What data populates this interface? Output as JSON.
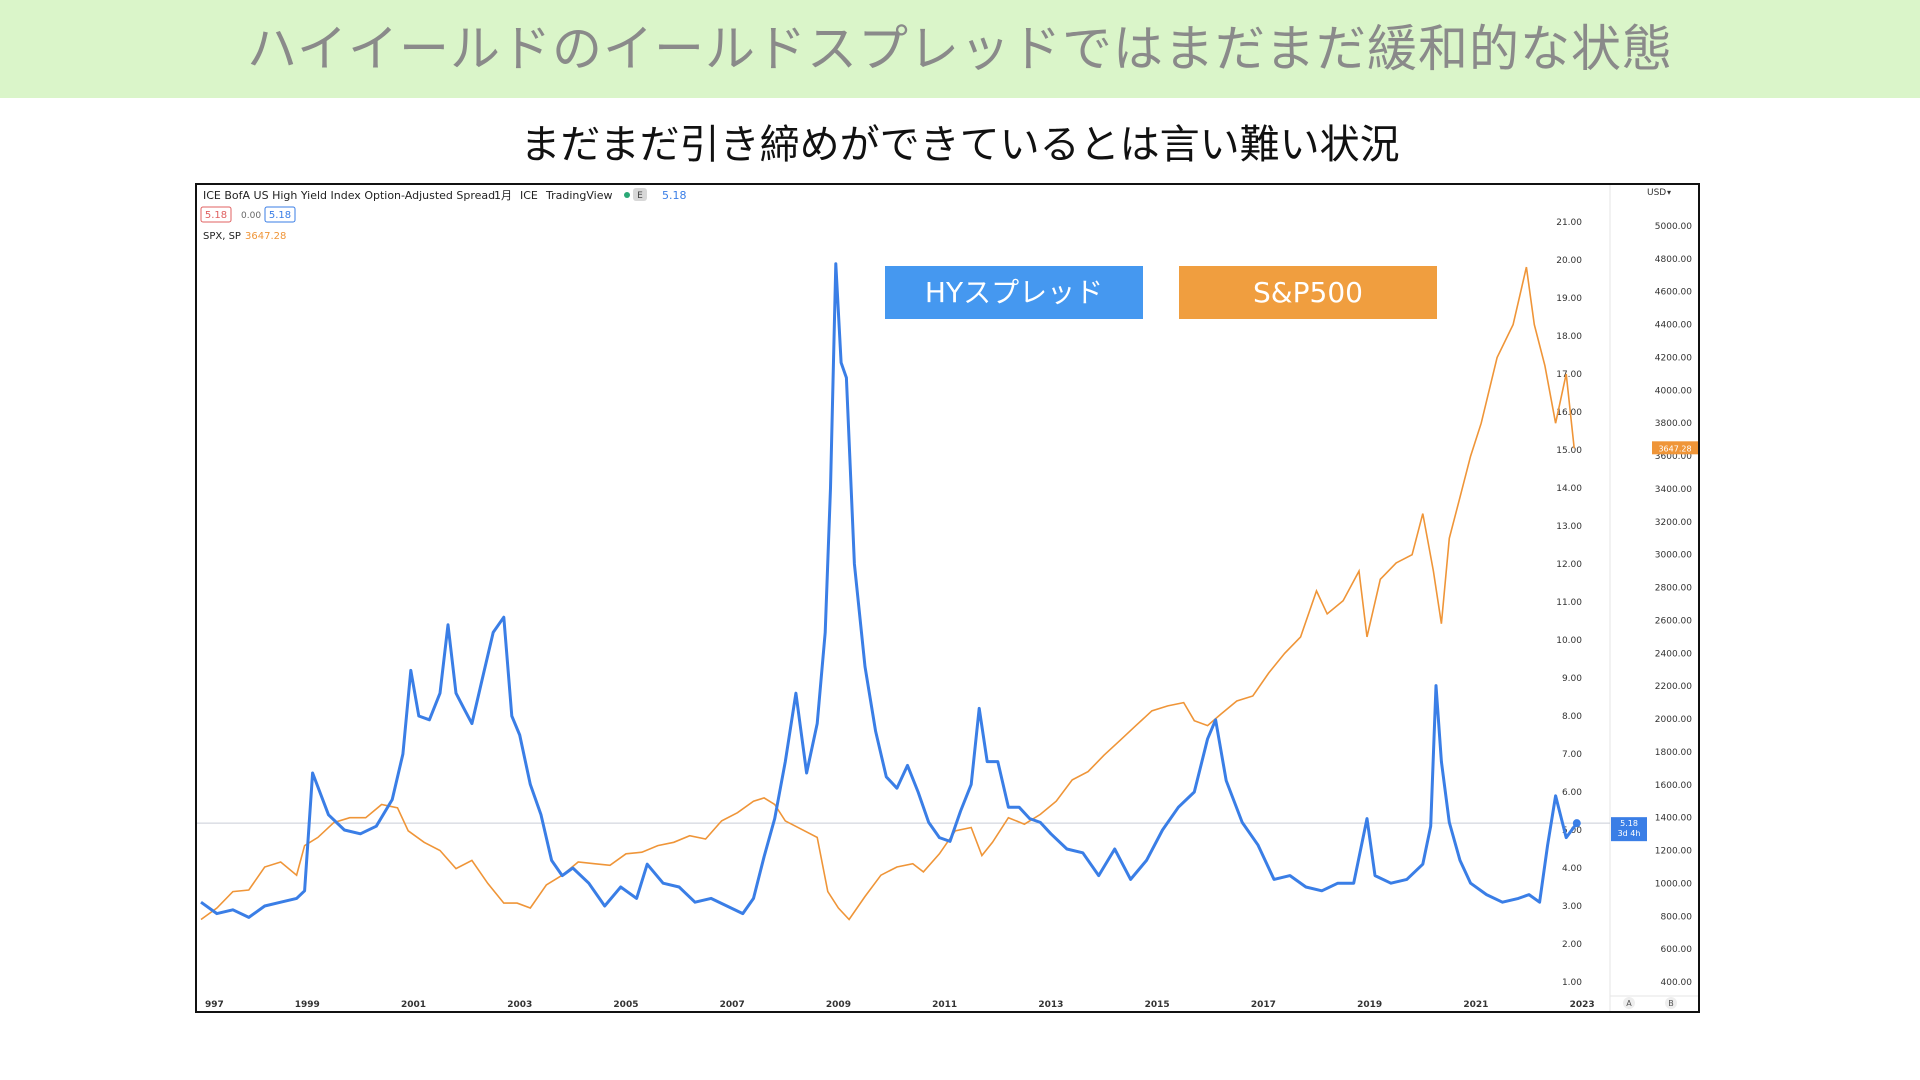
{
  "banner": {
    "title": "ハイイールドのイールドスプレッドではまだまだ緩和的な状態"
  },
  "subtitle": "まだまだ引き締めができているとは言い難い状況",
  "chart_header": {
    "title": "ICE BofA US High Yield Index Option-Adjusted Spread",
    "interval": "1月",
    "source": "ICE",
    "brand": "TradingView",
    "e_badge": "E",
    "last_value": "5.18",
    "ohlc_red": "5.18",
    "ohlc_change": "0.00",
    "ohlc_blue": "5.18",
    "spx_label": "SPX, SP",
    "spx_value": "3647.28",
    "currency": "USD",
    "price_tag_blue": "5.18",
    "price_tag_blue_sub": "3d 4h",
    "price_tag_orange": "3647.28",
    "axis_btn_a": "A",
    "axis_btn_b": "B"
  },
  "legend_boxes": {
    "hy": "HYスプレッド",
    "sp": "S&P500"
  },
  "colors": {
    "hy": "#3a7ee6",
    "sp": "#ef9538",
    "hy_box": "#4598f0",
    "sp_box": "#f09e3f"
  },
  "chart_data": {
    "type": "line",
    "x_ticks": [
      "997",
      "1999",
      "2001",
      "2003",
      "2005",
      "2007",
      "2009",
      "2011",
      "2013",
      "2015",
      "2017",
      "2019",
      "2021",
      "2023"
    ],
    "y_axis_left_range": [
      1,
      21.5
    ],
    "y_ticks_spread": [
      "21.00",
      "20.00",
      "19.00",
      "18.00",
      "17.00",
      "16.00",
      "15.00",
      "14.00",
      "13.00",
      "12.00",
      "11.00",
      "10.00",
      "9.00",
      "8.00",
      "7.00",
      "6.00",
      "5.00",
      "4.00",
      "3.00",
      "2.00",
      "1.00"
    ],
    "y_ticks_spx": [
      "5000.00",
      "4800.00",
      "4600.00",
      "4400.00",
      "4200.00",
      "4000.00",
      "3800.00",
      "3600.00",
      "3400.00",
      "3200.00",
      "3000.00",
      "2800.00",
      "2600.00",
      "2400.00",
      "2200.00",
      "2000.00",
      "1800.00",
      "1600.00",
      "1400.00",
      "1200.00",
      "1000.00",
      "800.00",
      "600.00",
      "400.00"
    ],
    "y_axis_right_range": [
      300,
      5200
    ],
    "series": [
      {
        "name": "HYスプレッド",
        "x": [
          1997.0,
          1997.3,
          1997.6,
          1997.9,
          1998.2,
          1998.5,
          1998.8,
          1998.95,
          1999.1,
          1999.4,
          1999.7,
          2000.0,
          2000.3,
          2000.6,
          2000.8,
          2000.95,
          2001.1,
          2001.3,
          2001.5,
          2001.65,
          2001.8,
          2001.95,
          2002.1,
          2002.3,
          2002.5,
          2002.7,
          2002.85,
          2003.0,
          2003.2,
          2003.4,
          2003.6,
          2003.8,
          2004.0,
          2004.3,
          2004.6,
          2004.9,
          2005.2,
          2005.4,
          2005.7,
          2006.0,
          2006.3,
          2006.6,
          2006.9,
          2007.2,
          2007.4,
          2007.6,
          2007.8,
          2008.0,
          2008.2,
          2008.4,
          2008.6,
          2008.75,
          2008.85,
          2008.95,
          2009.05,
          2009.15,
          2009.3,
          2009.5,
          2009.7,
          2009.9,
          2010.1,
          2010.3,
          2010.5,
          2010.7,
          2010.9,
          2011.1,
          2011.3,
          2011.5,
          2011.65,
          2011.8,
          2012.0,
          2012.2,
          2012.4,
          2012.6,
          2012.8,
          2013.0,
          2013.3,
          2013.6,
          2013.9,
          2014.2,
          2014.5,
          2014.8,
          2015.1,
          2015.4,
          2015.7,
          2015.95,
          2016.1,
          2016.3,
          2016.6,
          2016.9,
          2017.2,
          2017.5,
          2017.8,
          2018.1,
          2018.4,
          2018.7,
          2018.95,
          2019.1,
          2019.4,
          2019.7,
          2020.0,
          2020.15,
          2020.25,
          2020.35,
          2020.5,
          2020.7,
          2020.9,
          2021.2,
          2021.5,
          2021.8,
          2022.0,
          2022.2,
          2022.35,
          2022.5,
          2022.7,
          2022.9
        ],
        "y": [
          3.1,
          2.8,
          2.9,
          2.7,
          3.0,
          3.1,
          3.2,
          3.4,
          6.5,
          5.4,
          5.0,
          4.9,
          5.1,
          5.8,
          7.0,
          9.2,
          8.0,
          7.9,
          8.6,
          10.4,
          8.6,
          8.2,
          7.8,
          9.0,
          10.2,
          10.6,
          8.0,
          7.5,
          6.2,
          5.4,
          4.2,
          3.8,
          4.0,
          3.6,
          3.0,
          3.5,
          3.2,
          4.1,
          3.6,
          3.5,
          3.1,
          3.2,
          3.0,
          2.8,
          3.2,
          4.3,
          5.3,
          6.8,
          8.6,
          6.5,
          7.8,
          10.2,
          14.0,
          19.9,
          17.3,
          16.9,
          12.0,
          9.3,
          7.6,
          6.4,
          6.1,
          6.7,
          6.0,
          5.2,
          4.8,
          4.7,
          5.5,
          6.2,
          8.2,
          6.8,
          6.8,
          5.6,
          5.6,
          5.3,
          5.2,
          4.9,
          4.5,
          4.4,
          3.8,
          4.5,
          3.7,
          4.2,
          5.0,
          5.6,
          6.0,
          7.4,
          7.9,
          6.3,
          5.2,
          4.6,
          3.7,
          3.8,
          3.5,
          3.4,
          3.6,
          3.6,
          5.3,
          3.8,
          3.6,
          3.7,
          4.1,
          5.1,
          8.8,
          6.8,
          5.2,
          4.2,
          3.6,
          3.3,
          3.1,
          3.2,
          3.3,
          3.1,
          4.6,
          5.9,
          4.8,
          5.18
        ]
      },
      {
        "name": "S&P500",
        "x": [
          1997.0,
          1997.3,
          1997.6,
          1997.9,
          1998.2,
          1998.5,
          1998.8,
          1998.95,
          1999.2,
          1999.5,
          1999.8,
          2000.1,
          2000.4,
          2000.7,
          2000.9,
          2001.2,
          2001.5,
          2001.8,
          2002.1,
          2002.4,
          2002.7,
          2002.95,
          2003.2,
          2003.5,
          2003.8,
          2004.1,
          2004.4,
          2004.7,
          2005.0,
          2005.3,
          2005.6,
          2005.9,
          2006.2,
          2006.5,
          2006.8,
          2007.1,
          2007.4,
          2007.6,
          2007.8,
          2008.0,
          2008.3,
          2008.6,
          2008.8,
          2009.0,
          2009.2,
          2009.5,
          2009.8,
          2010.1,
          2010.4,
          2010.6,
          2010.9,
          2011.2,
          2011.5,
          2011.7,
          2011.9,
          2012.2,
          2012.5,
          2012.8,
          2013.1,
          2013.4,
          2013.7,
          2014.0,
          2014.3,
          2014.6,
          2014.9,
          2015.2,
          2015.5,
          2015.7,
          2015.95,
          2016.2,
          2016.5,
          2016.8,
          2017.1,
          2017.4,
          2017.7,
          2018.0,
          2018.2,
          2018.5,
          2018.8,
          2018.95,
          2019.2,
          2019.5,
          2019.8,
          2020.0,
          2020.2,
          2020.35,
          2020.5,
          2020.7,
          2020.9,
          2021.1,
          2021.4,
          2021.7,
          2021.95,
          2022.1,
          2022.3,
          2022.5,
          2022.7,
          2022.85
        ],
        "y": [
          780,
          850,
          950,
          960,
          1100,
          1130,
          1050,
          1230,
          1280,
          1370,
          1400,
          1400,
          1480,
          1460,
          1320,
          1250,
          1200,
          1090,
          1140,
          1000,
          880,
          880,
          850,
          990,
          1050,
          1130,
          1120,
          1110,
          1180,
          1190,
          1230,
          1250,
          1290,
          1270,
          1380,
          1430,
          1500,
          1520,
          1480,
          1380,
          1330,
          1280,
          950,
          850,
          780,
          920,
          1050,
          1100,
          1120,
          1070,
          1180,
          1320,
          1340,
          1170,
          1250,
          1400,
          1360,
          1420,
          1500,
          1630,
          1680,
          1780,
          1870,
          1960,
          2050,
          2080,
          2100,
          1990,
          1960,
          2030,
          2110,
          2140,
          2280,
          2400,
          2500,
          2780,
          2640,
          2720,
          2900,
          2500,
          2850,
          2950,
          3000,
          3250,
          2900,
          2580,
          3100,
          3350,
          3600,
          3800,
          4200,
          4400,
          4750,
          4400,
          4150,
          3800,
          4100,
          3647.28
        ]
      }
    ]
  }
}
